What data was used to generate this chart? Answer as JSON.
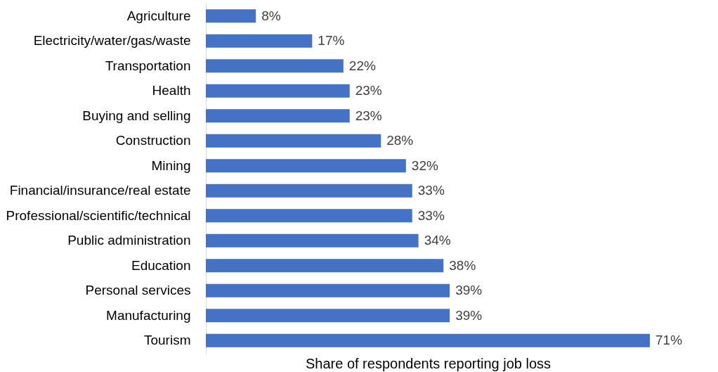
{
  "chart_data": {
    "type": "bar",
    "orientation": "horizontal",
    "xlabel": "Share of respondents reporting job loss",
    "categories": [
      "Agriculture",
      "Electricity/water/gas/waste",
      "Transportation",
      "Health",
      "Buying and selling",
      "Construction",
      "Mining",
      "Financial/insurance/real estate",
      "Professional/scientific/technical",
      "Public administration",
      "Education",
      "Personal services",
      "Manufacturing",
      "Tourism"
    ],
    "values": [
      8,
      17,
      22,
      23,
      23,
      28,
      32,
      33,
      33,
      34,
      38,
      39,
      39,
      71
    ],
    "value_labels": [
      "8%",
      "17%",
      "22%",
      "23%",
      "23%",
      "28%",
      "32%",
      "33%",
      "33%",
      "34%",
      "38%",
      "39%",
      "39%",
      "71%"
    ],
    "color": "#4472c4"
  }
}
